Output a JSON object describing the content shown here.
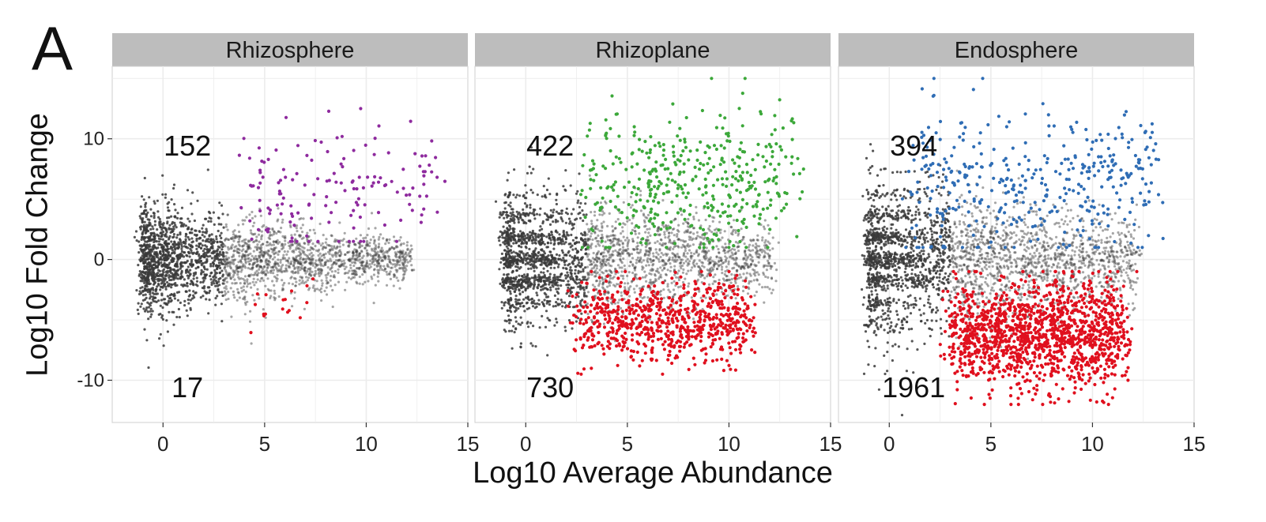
{
  "figure": {
    "panel_letter": "A",
    "xlabel": "Log10 Average Abundance",
    "ylabel": "Log10 Fold Change"
  },
  "colors": {
    "background_points": "#3a3a3a",
    "strip_fill": "#bdbdbd",
    "panel_bg": "#ffffff",
    "gridline": "#ececec",
    "Rhizosphere_up": "#8e2a9e",
    "Rhizoplane_up": "#3ca83a",
    "Endosphere_up": "#2f6db5",
    "down": "#e0101e"
  },
  "chart_data": [
    {
      "type": "scatter",
      "facet": "Rhizosphere",
      "xlim": [
        -2.5,
        15
      ],
      "ylim": [
        -13.5,
        16
      ],
      "xticks": [
        0,
        5,
        10,
        15
      ],
      "yticks": [
        -10,
        0,
        10
      ],
      "grid": true,
      "count_up": "152",
      "count_down": "17",
      "series": [
        {
          "name": "",
          "role": "background",
          "x_range": [
            -1,
            14.5
          ],
          "y_spread_at_min_x": 5.0,
          "y_spread_at_max_x": 1.2
        },
        {
          "name": "",
          "role": "enriched",
          "count": 152,
          "x_range": [
            4,
            14.5
          ],
          "y_range": [
            1.5,
            12.5
          ]
        },
        {
          "name": "",
          "role": "depleted",
          "count": 17,
          "x_range": [
            3.2,
            8
          ],
          "y_range": [
            -6.5,
            -1
          ]
        }
      ]
    },
    {
      "type": "scatter",
      "facet": "Rhizoplane",
      "xlim": [
        -2.5,
        15
      ],
      "ylim": [
        -13.5,
        16
      ],
      "xticks": [
        0,
        5,
        10,
        15
      ],
      "yticks": [
        -10,
        0,
        10
      ],
      "grid": true,
      "count_up": "422",
      "count_down": "730",
      "series": [
        {
          "name": "",
          "role": "background",
          "x_range": [
            -1,
            14.5
          ],
          "y_spread_at_min_x": 6.0,
          "y_spread_at_max_x": 2.5
        },
        {
          "name": "",
          "role": "enriched",
          "count": 422,
          "x_range": [
            3,
            14.5
          ],
          "y_range": [
            1,
            15
          ]
        },
        {
          "name": "",
          "role": "depleted",
          "count": 730,
          "x_range": [
            2.5,
            12.5
          ],
          "y_range": [
            -9.5,
            -1
          ]
        }
      ]
    },
    {
      "type": "scatter",
      "facet": "Endosphere",
      "xlim": [
        -2.5,
        15
      ],
      "ylim": [
        -13.5,
        16
      ],
      "xticks": [
        0,
        5,
        10,
        15
      ],
      "yticks": [
        -10,
        0,
        10
      ],
      "grid": true,
      "count_up": "394",
      "count_down": "1961",
      "series": [
        {
          "name": "",
          "role": "background",
          "x_range": [
            -1,
            14.5
          ],
          "y_spread_at_min_x": 7.0,
          "y_spread_at_max_x": 3.0
        },
        {
          "name": "",
          "role": "enriched",
          "count": 394,
          "x_range": [
            1,
            14.5
          ],
          "y_range": [
            1,
            15
          ]
        },
        {
          "name": "",
          "role": "depleted",
          "count": 1961,
          "x_range": [
            3,
            13
          ],
          "y_range": [
            -12,
            -1
          ]
        }
      ]
    }
  ]
}
